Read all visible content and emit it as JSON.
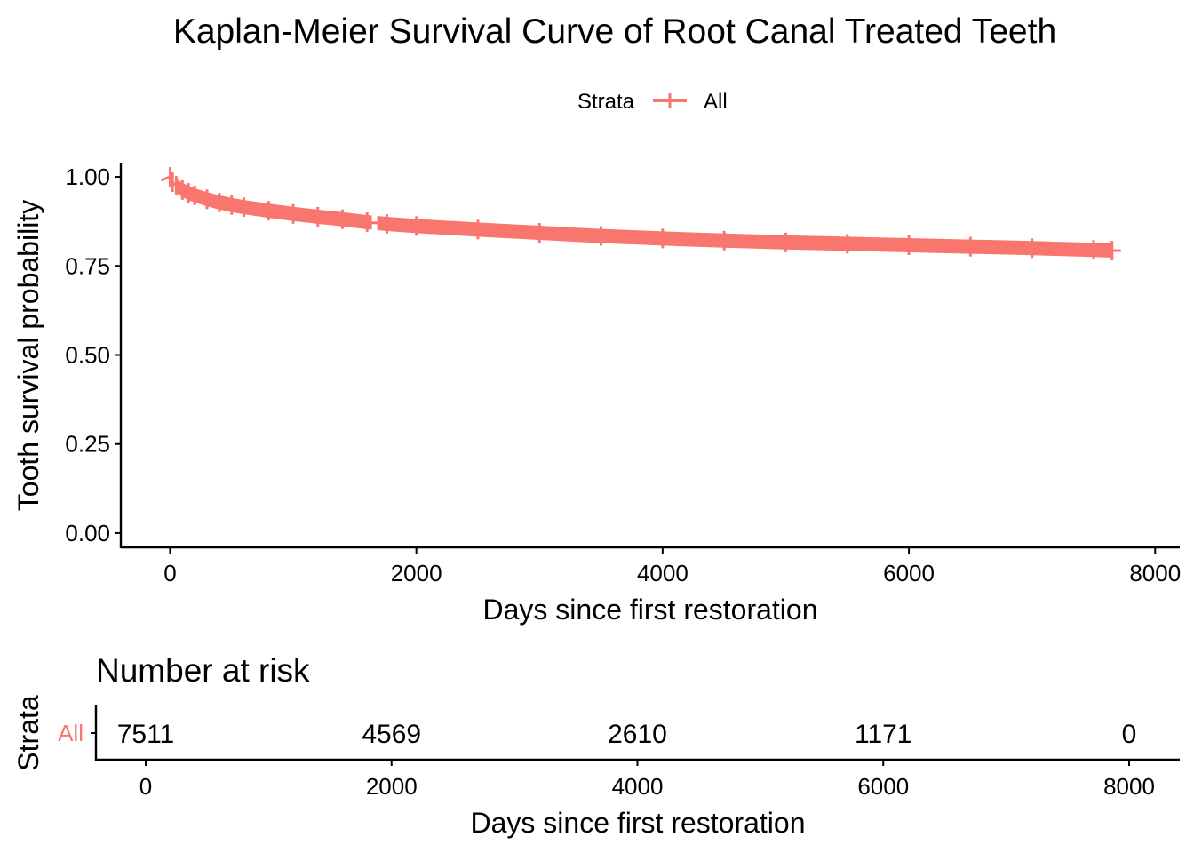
{
  "chart_data": [
    {
      "type": "line",
      "title": "Kaplan-Meier Survival Curve of Root Canal Treated Teeth",
      "xlabel": "Days since first restoration",
      "ylabel": "Tooth survival probability",
      "xlim": [
        -400,
        8200
      ],
      "ylim": [
        -0.04,
        1.04
      ],
      "xticks": [
        0,
        2000,
        4000,
        6000,
        8000
      ],
      "xtick_labels": [
        "0",
        "2000",
        "4000",
        "6000",
        "8000"
      ],
      "yticks": [
        0.0,
        0.25,
        0.5,
        0.75,
        1.0
      ],
      "ytick_labels": [
        "0.00",
        "0.25",
        "0.50",
        "0.75",
        "1.00"
      ],
      "grid": false,
      "legend": {
        "title": "Strata",
        "position": "top",
        "entries": [
          "All"
        ]
      },
      "series": [
        {
          "name": "All",
          "color": "#F8766D",
          "censor_marks": true,
          "x": [
            0,
            20,
            50,
            100,
            150,
            200,
            300,
            400,
            500,
            600,
            800,
            1000,
            1200,
            1400,
            1600,
            1760,
            2000,
            2500,
            3000,
            3500,
            4000,
            4500,
            5000,
            5500,
            6000,
            6500,
            7000,
            7500,
            7650
          ],
          "y": [
            1.0,
            0.985,
            0.975,
            0.963,
            0.955,
            0.948,
            0.937,
            0.928,
            0.921,
            0.915,
            0.905,
            0.896,
            0.888,
            0.881,
            0.873,
            0.868,
            0.862,
            0.852,
            0.843,
            0.834,
            0.827,
            0.821,
            0.816,
            0.812,
            0.808,
            0.804,
            0.8,
            0.795,
            0.793
          ]
        }
      ]
    },
    {
      "type": "table",
      "title": "Number at risk",
      "xlabel": "Days since first restoration",
      "ylabel": "Strata",
      "xlim": [
        -400,
        8200
      ],
      "xticks": [
        0,
        2000,
        4000,
        6000,
        8000
      ],
      "xtick_labels": [
        "0",
        "2000",
        "4000",
        "6000",
        "8000"
      ],
      "strata": [
        "All"
      ],
      "x": [
        0,
        2000,
        4000,
        6000,
        8000
      ],
      "values": [
        "7511",
        "4569",
        "2610",
        "1171",
        "0"
      ]
    }
  ]
}
